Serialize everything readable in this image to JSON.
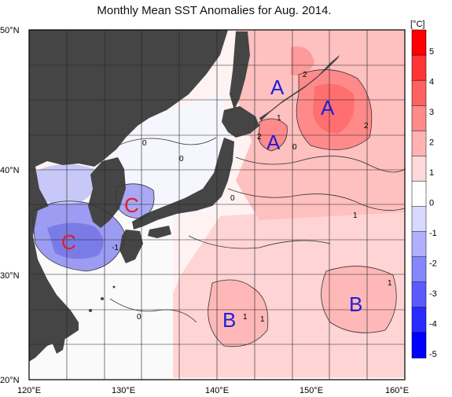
{
  "title": "Monthly Mean SST Anomalies for Aug. 2014.",
  "colorbar": {
    "unit": "[°C]",
    "ticks": [
      "5",
      "4",
      "3",
      "2",
      "1",
      "0",
      "-1",
      "-2",
      "-3",
      "-4",
      "-5"
    ],
    "colors": [
      "#ff0000",
      "#ff3434",
      "#ff6060",
      "#ff8a8a",
      "#ffb3b3",
      "#ffd9d9",
      "#ffffff",
      "#d9d9ff",
      "#b0b0ff",
      "#8686ff",
      "#5a5aff",
      "#2a2aff",
      "#0000ff"
    ]
  },
  "axes": {
    "lat_labels": [
      "50°N",
      "40°N",
      "30°N",
      "20°N"
    ],
    "lon_labels": [
      "120°E",
      "130°E",
      "140°E",
      "150°E",
      "160°E"
    ]
  },
  "region_labels": {
    "a1": "A",
    "a2": "A",
    "a3": "A",
    "b1": "B",
    "b2": "B",
    "c1": "C",
    "c2": "C"
  },
  "contour_labels": {
    "c0a": "0",
    "c0b": "0",
    "c0c": "0",
    "c0d": "0",
    "c0e": "0",
    "c1a": "1",
    "c1b": "1",
    "c1c": "1",
    "c1d": "1",
    "c1e": "1",
    "c1f": "-1",
    "c2a": "2",
    "c2b": "2",
    "c2c": "2"
  },
  "colors": {
    "land": "#454545",
    "region_a": "#1f1fd6",
    "region_b": "#1f1fd6",
    "region_c": "#e21f1f"
  }
}
